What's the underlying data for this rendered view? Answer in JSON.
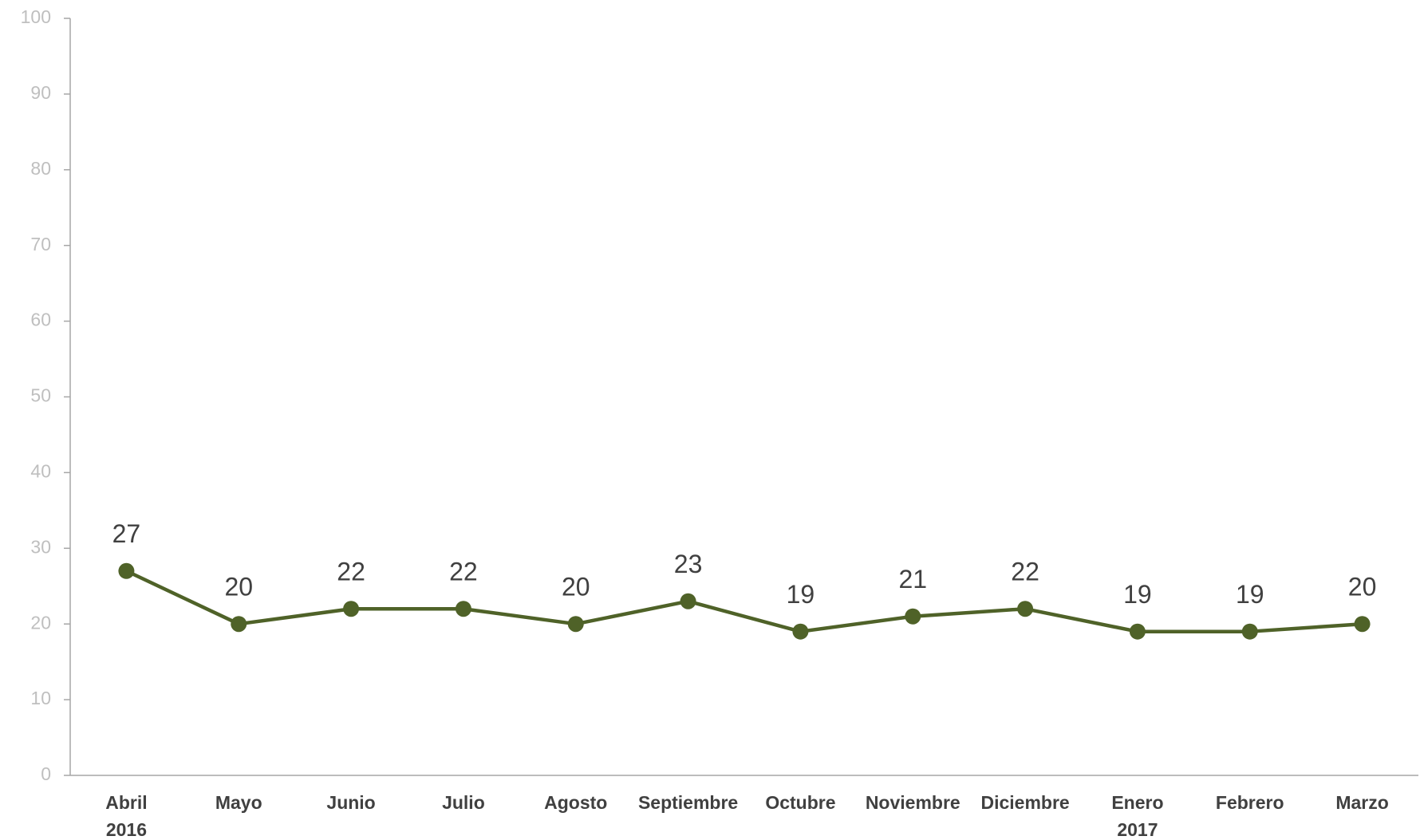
{
  "chart_data": {
    "type": "line",
    "categories": [
      "Abril 2016",
      "Mayo",
      "Junio",
      "Julio",
      "Agosto",
      "Septiembre",
      "Octubre",
      "Noviembre",
      "Diciembre",
      "Enero 2017",
      "Febrero",
      "Marzo"
    ],
    "series": [
      {
        "color": "#4f6228",
        "values": [
          27,
          20,
          22,
          22,
          20,
          23,
          19,
          21,
          22,
          19,
          19,
          20
        ]
      }
    ],
    "ylim": [
      0,
      100
    ],
    "yticks": [
      0,
      10,
      20,
      30,
      40,
      50,
      60,
      70,
      80,
      90,
      100
    ],
    "grid": false
  }
}
